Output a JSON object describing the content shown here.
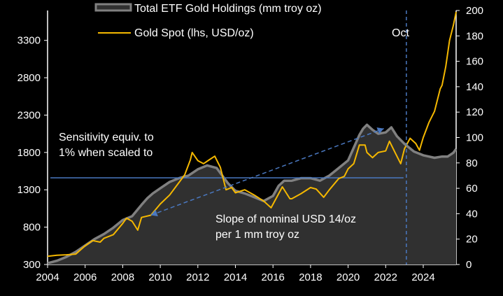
{
  "chart_data": {
    "type": "area+line",
    "title": "",
    "x_axis": {
      "ticks": [
        "2004",
        "2006",
        "2008",
        "2010",
        "2012",
        "2014",
        "2016",
        "2018",
        "2020",
        "2022",
        "2024"
      ],
      "range": [
        2004,
        2025.75
      ]
    },
    "y_left": {
      "ticks": [
        "300",
        "800",
        "1300",
        "1800",
        "2300",
        "2800",
        "3300"
      ],
      "range": [
        300,
        3700
      ],
      "unit": "USD/oz"
    },
    "y_right": {
      "ticks": [
        "0",
        "20",
        "40",
        "60",
        "80",
        "100",
        "120",
        "140",
        "160",
        "180",
        "200"
      ],
      "range": [
        0,
        200
      ],
      "unit": "mm troy oz"
    },
    "legend": [
      {
        "label": "Total ETF Gold Holdings (mm troy oz)",
        "color": "#808080",
        "fill": "#303030"
      },
      {
        "label": "Gold Spot (lhs, USD/oz)",
        "color": "#f5b800"
      }
    ],
    "annotations": {
      "sensitivity": [
        "Sensitivity equiv. to",
        "1% when scaled to"
      ],
      "slope": [
        "Slope of nominal USD 14/oz",
        "per 1 mm troy oz"
      ],
      "oct_label": "Oct",
      "oct_x": 2023.1,
      "horizontal_line_y": 1460,
      "arrow_from": [
        2009.5,
        960
      ],
      "arrow_to": [
        2021.9,
        2120
      ]
    },
    "series": [
      {
        "name": "Total ETF Gold Holdings (mm troy oz)",
        "axis": "right",
        "x": [
          2004.0,
          2004.5,
          2005.0,
          2005.5,
          2006.0,
          2006.5,
          2007.0,
          2007.5,
          2008.0,
          2008.5,
          2009.0,
          2009.3,
          2009.6,
          2010.0,
          2010.5,
          2011.0,
          2011.5,
          2012.0,
          2012.5,
          2013.0,
          2013.3,
          2013.6,
          2014.0,
          2014.5,
          2015.0,
          2015.5,
          2016.0,
          2016.3,
          2016.6,
          2017.0,
          2017.5,
          2018.0,
          2018.5,
          2019.0,
          2019.5,
          2020.0,
          2020.3,
          2020.6,
          2020.8,
          2021.0,
          2021.3,
          2021.6,
          2022.0,
          2022.3,
          2022.6,
          2023.0,
          2023.5,
          2024.0,
          2024.3,
          2024.6,
          2025.0,
          2025.3,
          2025.6,
          2025.75
        ],
        "values": [
          1,
          3,
          6,
          10,
          15,
          20,
          24,
          29,
          35,
          38,
          47,
          52,
          56,
          60,
          65,
          68,
          70,
          75,
          78,
          76,
          70,
          64,
          58,
          56,
          53,
          50,
          54,
          62,
          66,
          66,
          68,
          68,
          66,
          70,
          76,
          82,
          92,
          102,
          107,
          110,
          106,
          103,
          104,
          108,
          101,
          95,
          89,
          86,
          85,
          84,
          85,
          85,
          88,
          91
        ]
      },
      {
        "name": "Gold Spot (lhs, USD/oz)",
        "axis": "left",
        "x": [
          2004.0,
          2004.5,
          2005.0,
          2005.5,
          2006.0,
          2006.4,
          2006.8,
          2007.0,
          2007.5,
          2008.0,
          2008.2,
          2008.5,
          2008.8,
          2009.0,
          2009.5,
          2010.0,
          2010.5,
          2011.0,
          2011.3,
          2011.6,
          2011.7,
          2012.0,
          2012.3,
          2012.6,
          2012.9,
          2013.2,
          2013.5,
          2013.8,
          2014.0,
          2014.5,
          2015.0,
          2015.5,
          2015.9,
          2016.2,
          2016.5,
          2016.9,
          2017.0,
          2017.5,
          2018.0,
          2018.3,
          2018.7,
          2019.0,
          2019.5,
          2019.8,
          2020.0,
          2020.3,
          2020.6,
          2020.9,
          2021.0,
          2021.3,
          2021.6,
          2022.0,
          2022.2,
          2022.5,
          2022.8,
          2023.0,
          2023.3,
          2023.6,
          2023.8,
          2024.0,
          2024.3,
          2024.6,
          2024.9,
          2025.0,
          2025.2,
          2025.4,
          2025.6,
          2025.75
        ],
        "values": [
          410,
          425,
          430,
          440,
          550,
          620,
          600,
          650,
          700,
          850,
          920,
          880,
          760,
          930,
          960,
          1110,
          1230,
          1400,
          1500,
          1700,
          1800,
          1690,
          1650,
          1700,
          1750,
          1600,
          1300,
          1330,
          1260,
          1300,
          1230,
          1150,
          1060,
          1200,
          1340,
          1180,
          1180,
          1250,
          1330,
          1310,
          1200,
          1300,
          1450,
          1480,
          1580,
          1650,
          1900,
          1900,
          1800,
          1730,
          1800,
          1820,
          1950,
          1800,
          1650,
          1850,
          1990,
          1920,
          1830,
          2000,
          2200,
          2350,
          2650,
          2700,
          2950,
          3300,
          3500,
          3680
        ]
      }
    ]
  }
}
